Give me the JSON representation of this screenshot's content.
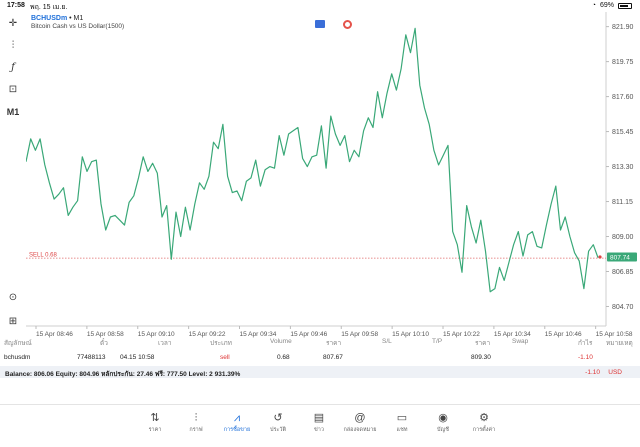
{
  "status_bar": {
    "time": "17:58",
    "date": "พฤ. 15 เม.ย.",
    "battery": "69%"
  },
  "chart": {
    "symbol": "BCHUSDm",
    "timeframe": "• M1",
    "description": "Bitcoin Cash vs US Dollar(1500)",
    "line_color": "#3aa878",
    "price_labels": [
      "821.90",
      "819.75",
      "817.60",
      "815.45",
      "813.30",
      "811.15",
      "809.00",
      "806.85",
      "804.70"
    ],
    "price_label_values": [
      821.9,
      819.75,
      817.6,
      815.45,
      813.3,
      811.15,
      809.0,
      806.85,
      804.7
    ],
    "current_price": "807.74",
    "current_price_value": 807.74,
    "sell_label": "SELL 0.68",
    "sell_price_value": 807.67,
    "time_labels": [
      "15 Apr 08:46",
      "15 Apr 08:58",
      "15 Apr 09:10",
      "15 Apr 09:22",
      "15 Apr 09:34",
      "15 Apr 09:46",
      "15 Apr 09:58",
      "15 Apr 10:10",
      "15 Apr 10:22",
      "15 Apr 10:34",
      "15 Apr 10:46",
      "15 Apr 10:58"
    ],
    "prices": [
      813.6,
      815.0,
      814.3,
      815.0,
      813.4,
      812.3,
      811.3,
      811.6,
      812.0,
      810.3,
      810.8,
      811.2,
      813.9,
      813.0,
      813.6,
      813.7,
      811.0,
      809.4,
      810.2,
      810.3,
      810.0,
      809.7,
      811.1,
      811.5,
      812.6,
      813.9,
      813.0,
      813.5,
      812.9,
      810.2,
      810.9,
      807.6,
      810.5,
      809.0,
      810.8,
      809.4,
      811.0,
      812.3,
      811.9,
      812.7,
      814.8,
      814.4,
      815.9,
      812.7,
      811.7,
      811.8,
      811.2,
      812.4,
      812.6,
      813.7,
      812.1,
      813.1,
      813.3,
      813.2,
      815.2,
      814.0,
      815.3,
      815.5,
      815.7,
      813.8,
      813.3,
      813.9,
      814.0,
      815.8,
      813.2,
      816.4,
      815.3,
      814.6,
      815.2,
      813.6,
      814.3,
      813.9,
      815.5,
      816.3,
      815.7,
      817.9,
      816.3,
      817.8,
      819.0,
      818.0,
      819.3,
      821.4,
      820.3,
      821.8,
      818.3,
      816.9,
      815.9,
      814.3,
      813.4,
      814.0,
      814.6,
      809.3,
      808.5,
      806.8,
      810.9,
      809.6,
      808.6,
      810.0,
      808.1,
      805.6,
      805.8,
      807.1,
      806.3,
      807.4,
      808.5,
      809.3,
      807.8,
      809.1,
      809.3,
      808.4,
      808.3,
      809.7,
      811.0,
      812.1,
      809.4,
      810.2,
      809.0,
      808.0,
      807.5,
      805.8,
      808.1,
      808.5,
      807.7
    ],
    "price_min": 803.5,
    "price_max": 822.8
  },
  "toolbar": {
    "crosshair": "crosshair-icon",
    "indicators": "indicators-icon",
    "function": "ƒ",
    "objects": "objects-icon",
    "timeframe": "M1",
    "search": "search-icon",
    "add": "add-icon"
  },
  "trades": {
    "headers": [
      "สัญลักษณ์",
      "ตั๋ว",
      "เวลา",
      "ประเภท",
      "Volume",
      "ราคา",
      "S/L",
      "T/P",
      "ราคา",
      "Swap",
      "กำไร",
      "หมายเหตุ"
    ],
    "row": {
      "symbol": "bchusdm",
      "ticket": "77488113",
      "time": "04.15 10:58",
      "type": "sell",
      "volume": "0.68",
      "open_price": "807.67",
      "sl": "",
      "tp": "",
      "price": "809.30",
      "swap": "",
      "profit": "-1.10",
      "comment": ""
    }
  },
  "balance": {
    "text": "Balance: 806.06 Equity: 804.96 หลักประกัน: 27.46 ฟรี: 777.50 Level: 2 931.39%",
    "profit": "-1.10",
    "currency": "USD"
  },
  "bottom_nav": [
    {
      "label": "ราคา",
      "icon": "quotes-icon"
    },
    {
      "label": "กราฟ",
      "icon": "chart-icon"
    },
    {
      "label": "การซื้อขาย",
      "icon": "trade-icon",
      "active": true
    },
    {
      "label": "ประวัติ",
      "icon": "history-icon"
    },
    {
      "label": "ข่าว",
      "icon": "news-icon"
    },
    {
      "label": "กล่องจดหมาย",
      "icon": "mailbox-icon"
    },
    {
      "label": "แชท",
      "icon": "chat-icon"
    },
    {
      "label": "บัญชี",
      "icon": "account-icon"
    },
    {
      "label": "การตั้งค่า",
      "icon": "settings-icon"
    }
  ]
}
